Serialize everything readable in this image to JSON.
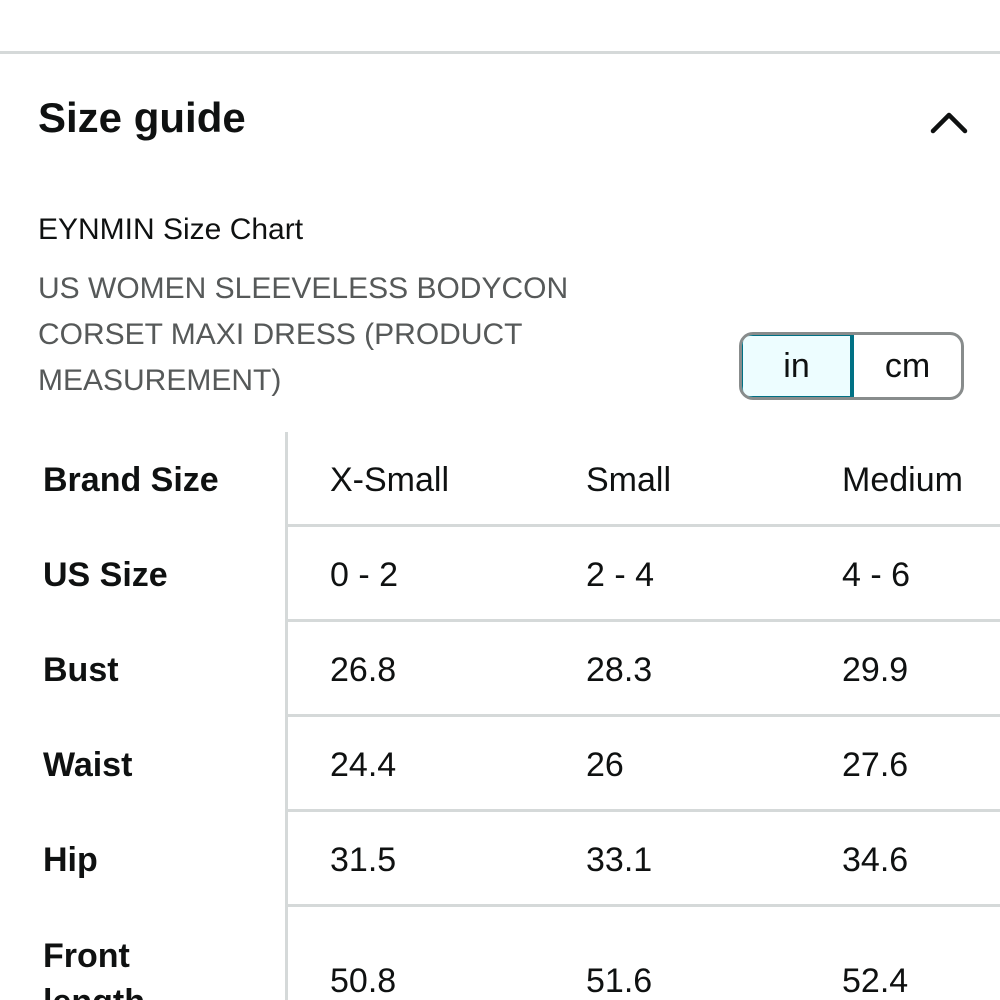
{
  "header": {
    "title": "Size guide",
    "toggle_icon": "chevron-up-icon"
  },
  "chart": {
    "title": "EYNMIN Size Chart",
    "subtitle_lines": [
      "US WOMEN SLEEVELESS BODYCON",
      "CORSET MAXI DRESS (PRODUCT",
      "MEASUREMENT)"
    ]
  },
  "units": {
    "options": [
      "in",
      "cm"
    ],
    "selected": "in",
    "accent_color": "#007185"
  },
  "table": {
    "rows": [
      {
        "label": "Brand Size",
        "values": [
          "X-Small",
          "Small",
          "Medium"
        ]
      },
      {
        "label": "US Size",
        "values": [
          "0 - 2",
          "2 - 4",
          "4 - 6"
        ]
      },
      {
        "label": "Bust",
        "values": [
          "26.8",
          "28.3",
          "29.9"
        ]
      },
      {
        "label": "Waist",
        "values": [
          "24.4",
          "26",
          "27.6"
        ]
      },
      {
        "label": "Hip",
        "values": [
          "31.5",
          "33.1",
          "34.6"
        ]
      },
      {
        "label_lines": [
          "Front",
          "length"
        ],
        "values": [
          "50.8",
          "51.6",
          "52.4"
        ]
      }
    ]
  }
}
